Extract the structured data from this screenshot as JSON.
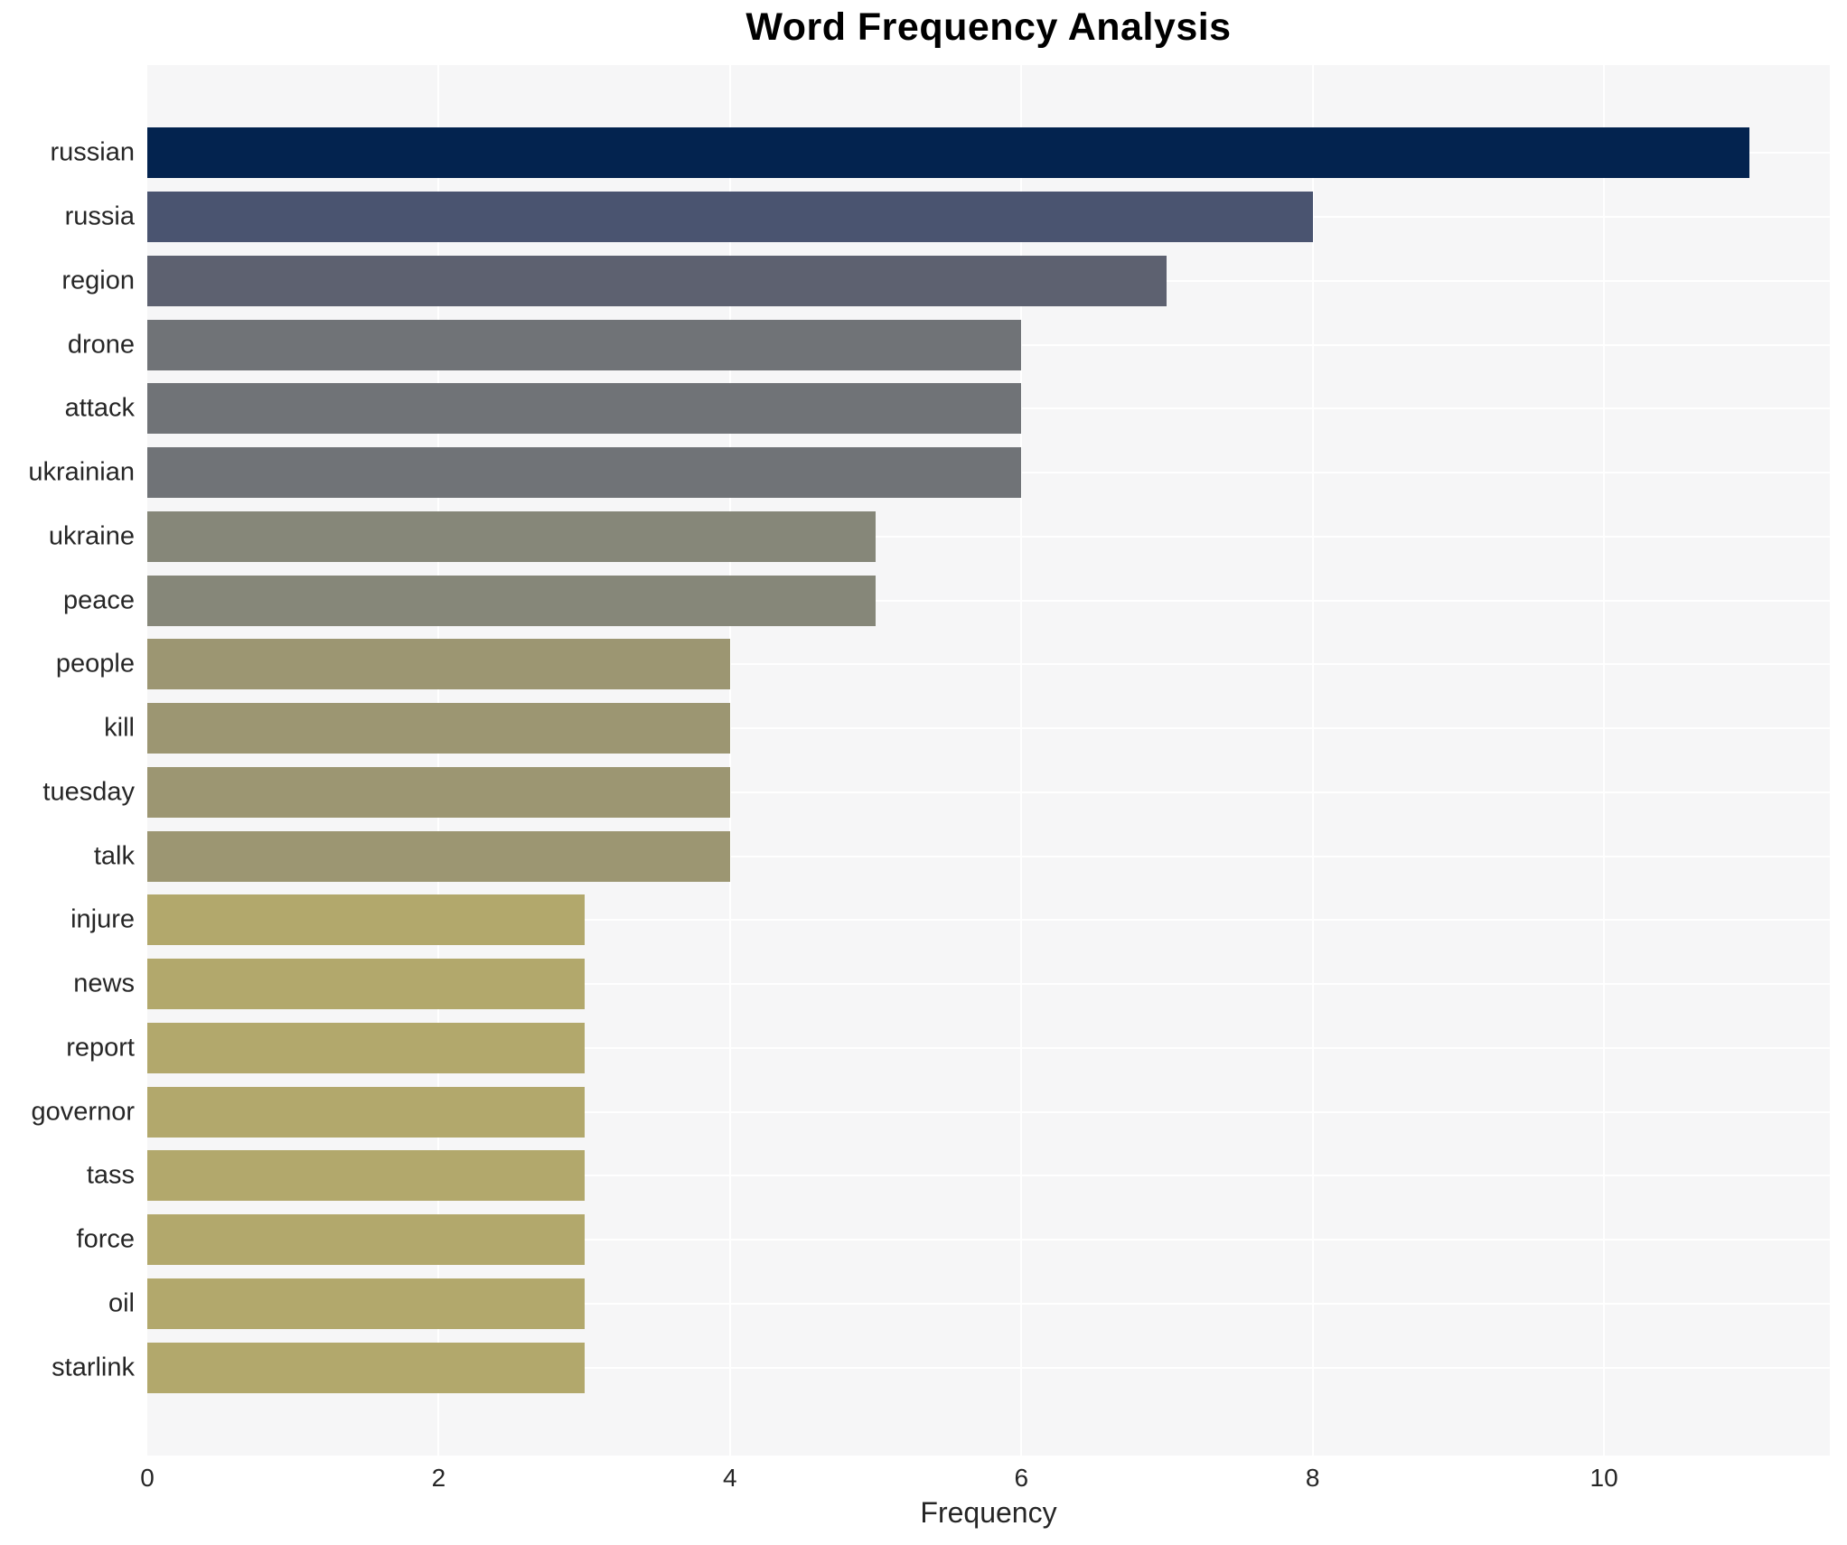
{
  "chart_data": {
    "type": "bar",
    "orientation": "horizontal",
    "title": "Word Frequency Analysis",
    "xlabel": "Frequency",
    "ylabel": "",
    "categories": [
      "russian",
      "russia",
      "region",
      "drone",
      "attack",
      "ukrainian",
      "ukraine",
      "peace",
      "people",
      "kill",
      "tuesday",
      "talk",
      "injure",
      "news",
      "report",
      "governor",
      "tass",
      "force",
      "oil",
      "starlink"
    ],
    "values": [
      11,
      8,
      7,
      6,
      6,
      6,
      5,
      5,
      4,
      4,
      4,
      4,
      3,
      3,
      3,
      3,
      3,
      3,
      3,
      3
    ],
    "bar_colors": [
      "#03234f",
      "#4a5470",
      "#5d6170",
      "#707377",
      "#707377",
      "#707377",
      "#868779",
      "#868779",
      "#9c9672",
      "#9c9672",
      "#9c9672",
      "#9c9672",
      "#b2a86c",
      "#b2a86c",
      "#b2a86c",
      "#b2a86c",
      "#b2a86c",
      "#b2a86c",
      "#b2a86c",
      "#b2a86c"
    ],
    "xticks": [
      "0",
      "2",
      "4",
      "6",
      "8",
      "10"
    ],
    "xlim": [
      0,
      11.55
    ],
    "grid": true,
    "legend_position": "none",
    "plot_background_color": "#f6f6f7",
    "grid_color": "#ffffff",
    "title_color": "#000000",
    "tick_label_color": "#262626"
  }
}
